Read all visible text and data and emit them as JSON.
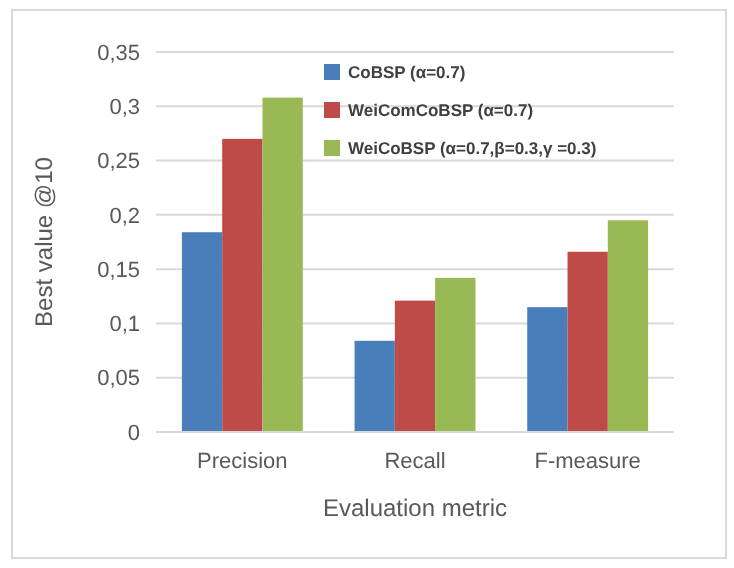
{
  "chart_data": {
    "type": "bar",
    "xlabel": "Evaluation metric",
    "ylabel": "Best value @10",
    "categories": [
      "Precision",
      "Recall",
      "F-measure"
    ],
    "series": [
      {
        "name": "CoBSP (α=0.7)",
        "color": "#4a7ebb",
        "values": [
          0.184,
          0.084,
          0.115
        ]
      },
      {
        "name": "WeiComCoBSP (α=0.7)",
        "color": "#be4b48",
        "values": [
          0.27,
          0.121,
          0.166
        ]
      },
      {
        "name": "WeiCoBSP (α=0.7,β=0.3,γ =0.3)",
        "color": "#98b954",
        "values": [
          0.308,
          0.142,
          0.195
        ]
      }
    ],
    "ylim": [
      0,
      0.35
    ],
    "yticks": [
      0,
      {
        "value": 0.05,
        "label": "0,05"
      },
      {
        "value": 0.1,
        "label": "0,1"
      },
      {
        "value": 0.15,
        "label": "0,15"
      },
      {
        "value": 0.2,
        "label": "0,2"
      },
      {
        "value": 0.25,
        "label": "0,25"
      },
      {
        "value": 0.3,
        "label": "0,3"
      },
      {
        "value": 0.35,
        "label": "0,35"
      }
    ],
    "grid": "y",
    "legend": "top right"
  }
}
